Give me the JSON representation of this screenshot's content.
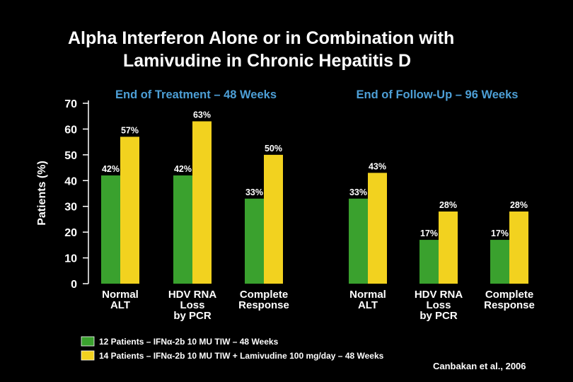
{
  "title_line1": "Alpha Interferon Alone or in Combination with",
  "title_line2": "Lamivudine in Chronic Hepatitis D",
  "chart_data": {
    "type": "bar",
    "ylabel": "Patients (%)",
    "ylim": [
      0,
      70
    ],
    "yticks": [
      "0",
      "10",
      "20",
      "30",
      "40",
      "50",
      "60",
      "70"
    ],
    "groups": [
      {
        "title": "End of Treatment – 48 Weeks",
        "categories": [
          [
            "Normal",
            "ALT"
          ],
          [
            "HDV RNA",
            "Loss",
            "by PCR"
          ],
          [
            "Complete",
            "Response"
          ]
        ],
        "series": [
          {
            "name": "12 Patients",
            "values": [
              42,
              42,
              33
            ],
            "labels": [
              "42%",
              "42%",
              "33%"
            ]
          },
          {
            "name": "14 Patients",
            "values": [
              57,
              63,
              50
            ],
            "labels": [
              "57%",
              "63%",
              "50%"
            ]
          }
        ]
      },
      {
        "title": "End of Follow-Up – 96 Weeks",
        "categories": [
          [
            "Normal",
            "ALT"
          ],
          [
            "HDV RNA",
            "Loss",
            "by PCR"
          ],
          [
            "Complete",
            "Response"
          ]
        ],
        "series": [
          {
            "name": "12 Patients",
            "values": [
              33,
              17,
              17
            ],
            "labels": [
              "33%",
              "17%",
              "17%"
            ]
          },
          {
            "name": "14 Patients",
            "values": [
              43,
              28,
              28
            ],
            "labels": [
              "43%",
              "28%",
              "28%"
            ]
          }
        ]
      }
    ],
    "legend": [
      {
        "label": "12 Patients – IFNα-2b 10 MU TIW – 48 Weeks",
        "color": "#3aa12e"
      },
      {
        "label": "14 Patients – IFNα-2b 10 MU TIW + Lamivudine 100 mg/day – 48 Weeks",
        "color": "#f2d21f"
      }
    ],
    "colors": {
      "green": "#3aa12e",
      "yellow": "#f2d21f",
      "group_title": "#4d9fd6",
      "axis": "#ffffff"
    }
  },
  "source": "Canbakan et al., 2006"
}
